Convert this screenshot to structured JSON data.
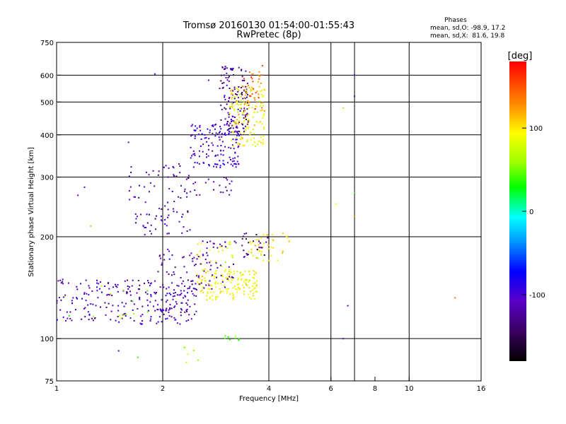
{
  "header": {
    "title_line1": "Tromsø 20160130 01:54:00-01:55:43",
    "title_line2": "RwPretec (8p)"
  },
  "stats": {
    "heading": "Phases",
    "line_o": "mean, sd,O: -98.9, 17.2",
    "line_x": "mean, sd,X:  81.6, 19.8"
  },
  "colorbar": {
    "label": "[deg]",
    "range": [
      -180,
      180
    ],
    "ticks": [
      {
        "value": 100,
        "label": "100"
      },
      {
        "value": 0,
        "label": "0"
      },
      {
        "value": -100,
        "label": "-100"
      }
    ]
  },
  "chart_data": {
    "type": "scatter",
    "title": "Tromsø 20160130 01:54:00-01:55:43",
    "subtitle": "RwPretec (8p)",
    "xlabel": "Frequency [MHz]",
    "ylabel": "Stationary phase Virtual Height [km]",
    "x_scale": "log",
    "y_scale": "log",
    "xlim": [
      1,
      16
    ],
    "ylim": [
      75,
      750
    ],
    "x_ticks": [
      1,
      2,
      4,
      6,
      8,
      10,
      16
    ],
    "y_ticks": [
      75,
      100,
      200,
      300,
      400,
      500,
      600,
      750
    ],
    "x_grid": [
      2,
      4,
      6,
      7,
      10
    ],
    "y_grid": [
      100,
      200,
      300,
      400,
      500,
      600
    ],
    "color_variable": "phase [deg]",
    "clusters": [
      {
        "x_range": [
          1.0,
          2.5
        ],
        "y_range": [
          110,
          150
        ],
        "phase_mean": -110,
        "count": 230
      },
      {
        "x_range": [
          1.05,
          1.9
        ],
        "y_range": [
          115,
          145
        ],
        "phase_mean": 60,
        "count": 14
      },
      {
        "x_range": [
          1.9,
          2.5
        ],
        "y_range": [
          120,
          185
        ],
        "phase_mean": -115,
        "count": 70
      },
      {
        "x_range": [
          1.6,
          2.4
        ],
        "y_range": [
          200,
          330
        ],
        "phase_mean": -115,
        "count": 90
      },
      {
        "x_range": [
          2.4,
          3.3
        ],
        "y_range": [
          320,
          430
        ],
        "phase_mean": -105,
        "count": 140
      },
      {
        "x_range": [
          2.9,
          3.5
        ],
        "y_range": [
          400,
          640
        ],
        "phase_mean": -125,
        "count": 140
      },
      {
        "x_range": [
          3.1,
          3.9
        ],
        "y_range": [
          370,
          560
        ],
        "phase_mean": 95,
        "count": 150
      },
      {
        "x_range": [
          3.4,
          3.9
        ],
        "y_range": [
          470,
          640
        ],
        "phase_mean": 140,
        "count": 40
      },
      {
        "x_range": [
          2.5,
          3.7
        ],
        "y_range": [
          130,
          160
        ],
        "phase_mean": 95,
        "count": 150
      },
      {
        "x_range": [
          2.5,
          3.2
        ],
        "y_range": [
          150,
          195
        ],
        "phase_mean": 90,
        "count": 35
      },
      {
        "x_range": [
          2.5,
          3.2
        ],
        "y_range": [
          140,
          195
        ],
        "phase_mean": -115,
        "count": 50
      },
      {
        "x_range": [
          3.5,
          4.6
        ],
        "y_range": [
          170,
          205
        ],
        "phase_mean": 100,
        "count": 45
      },
      {
        "x_range": [
          3.2,
          4.0
        ],
        "y_range": [
          170,
          205
        ],
        "phase_mean": -135,
        "count": 25
      },
      {
        "x_range": [
          2.3,
          3.2
        ],
        "y_range": [
          265,
          300
        ],
        "phase_mean": -110,
        "count": 25
      },
      {
        "x_range": [
          3.0,
          3.3
        ],
        "y_range": [
          98,
          102
        ],
        "phase_mean": 40,
        "count": 8
      },
      {
        "x_range": [
          2.3,
          2.6
        ],
        "y_range": [
          85,
          95
        ],
        "phase_mean": 70,
        "count": 6
      }
    ],
    "outliers": [
      {
        "x": 7.0,
        "y": 600,
        "phase": -110
      },
      {
        "x": 7.0,
        "y": 520,
        "phase": -120
      },
      {
        "x": 6.5,
        "y": 480,
        "phase": 110
      },
      {
        "x": 6.2,
        "y": 250,
        "phase": 100
      },
      {
        "x": 7.0,
        "y": 270,
        "phase": 40
      },
      {
        "x": 7.0,
        "y": 230,
        "phase": 130
      },
      {
        "x": 6.7,
        "y": 125,
        "phase": -110
      },
      {
        "x": 13.5,
        "y": 132,
        "phase": 140
      },
      {
        "x": 1.5,
        "y": 92,
        "phase": -100
      },
      {
        "x": 1.7,
        "y": 88,
        "phase": 40
      },
      {
        "x": 1.9,
        "y": 605,
        "phase": -100
      },
      {
        "x": 1.6,
        "y": 380,
        "phase": -110
      },
      {
        "x": 1.2,
        "y": 280,
        "phase": -110
      },
      {
        "x": 1.15,
        "y": 265,
        "phase": -110
      },
      {
        "x": 1.25,
        "y": 215,
        "phase": 120
      },
      {
        "x": 2.7,
        "y": 580,
        "phase": -110
      },
      {
        "x": 6.5,
        "y": 100,
        "phase": -110
      }
    ]
  }
}
